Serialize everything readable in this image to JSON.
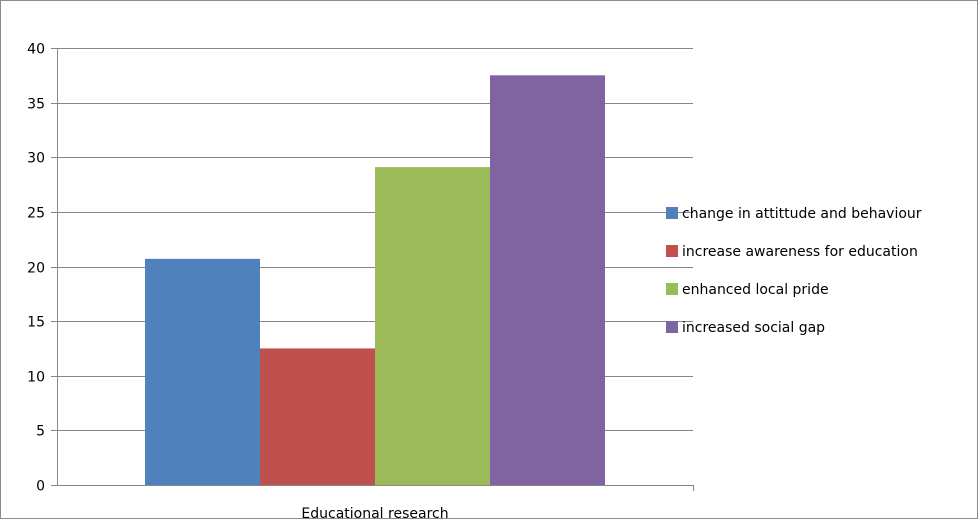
{
  "chart_data": {
    "type": "bar",
    "categories": [
      "Educational research"
    ],
    "series": [
      {
        "name": "change in attittude and behaviour",
        "values": [
          20.7
        ],
        "color": "#4f81bd"
      },
      {
        "name": "increase awareness for education",
        "values": [
          12.5
        ],
        "color": "#c0504d"
      },
      {
        "name": "enhanced local pride",
        "values": [
          29.1
        ],
        "color": "#9bbb59"
      },
      {
        "name": "increased social gap",
        "values": [
          37.5
        ],
        "color": "#8064a2"
      }
    ],
    "ylim": [
      0,
      40
    ],
    "yticks": [
      0,
      5,
      10,
      15,
      20,
      25,
      30,
      35,
      40
    ],
    "grid": true,
    "legend_position": "right",
    "title": "",
    "xlabel": "",
    "ylabel": ""
  }
}
